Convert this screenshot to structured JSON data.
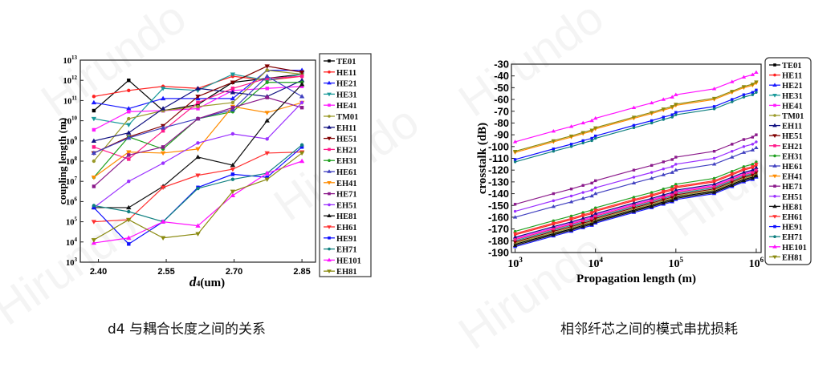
{
  "watermark": "Hirundo",
  "captions": {
    "left": "d4 与耦合长度之间的关系",
    "right": "相邻纤芯之间的模式串扰损耗"
  },
  "chart_data": [
    {
      "type": "line",
      "title": "",
      "xlabel": "d",
      "xlabel_sub": "4",
      "xlabel_unit": "(um)",
      "ylabel": "coupling length (m)",
      "yscale": "log",
      "ylim_log10": [
        3,
        13
      ],
      "xlim": [
        2.36,
        2.88
      ],
      "x_ticks": [
        "2.40",
        "2.55",
        "2.70",
        "2.85"
      ],
      "x_tick_values": [
        2.4,
        2.55,
        2.7,
        2.85
      ],
      "y_tick_base": "10",
      "y_tick_exponents": [
        "3",
        "4",
        "5",
        "6",
        "7",
        "8",
        "9",
        "10",
        "11",
        "12",
        "13"
      ],
      "legend_position": "right-outside",
      "x": [
        2.39,
        2.467,
        2.543,
        2.62,
        2.697,
        2.773,
        2.85
      ],
      "values_are": "log10 of coupling length (m)",
      "series": [
        {
          "name": "TE01",
          "color": "#000000",
          "values": [
            10.5,
            12.0,
            10.5,
            10.8,
            11.9,
            12.1,
            12.3
          ]
        },
        {
          "name": "HE11",
          "color": "#ff2020",
          "values": [
            11.2,
            11.5,
            11.7,
            11.6,
            12.2,
            12.0,
            12.2
          ]
        },
        {
          "name": "HE21",
          "color": "#1a1aff",
          "values": [
            10.9,
            10.6,
            11.1,
            11.1,
            11.1,
            12.5,
            12.5
          ]
        },
        {
          "name": "HE31",
          "color": "#1a9a9a",
          "values": [
            10.1,
            9.8,
            11.6,
            11.5,
            12.3,
            12.0,
            12.3
          ]
        },
        {
          "name": "HE41",
          "color": "#ff1aff",
          "values": [
            9.55,
            10.45,
            10.5,
            10.6,
            11.5,
            11.6,
            11.7
          ]
        },
        {
          "name": "TM01",
          "color": "#9a9a2a",
          "values": [
            8.0,
            10.1,
            10.5,
            10.7,
            10.9,
            12.5,
            12.3
          ]
        },
        {
          "name": "EH11",
          "color": "#101080",
          "values": [
            9.0,
            9.4,
            10.6,
            11.6,
            11.4,
            11.2,
            12.0
          ]
        },
        {
          "name": "HE51",
          "color": "#800000",
          "values": [
            8.4,
            9.2,
            9.75,
            11.2,
            11.9,
            12.7,
            12.4
          ]
        },
        {
          "name": "EH21",
          "color": "#ff1a8a",
          "values": [
            8.7,
            8.1,
            9.5,
            10.9,
            11.6,
            12.1,
            12.2
          ]
        },
        {
          "name": "EH31",
          "color": "#20a020",
          "values": [
            7.2,
            9.2,
            8.6,
            10.1,
            10.45,
            11.9,
            11.9
          ]
        },
        {
          "name": "HE61",
          "color": "#4040c0",
          "values": [
            8.4,
            9.15,
            9.65,
            10.1,
            10.55,
            12.2,
            11.2
          ]
        },
        {
          "name": "EH41",
          "color": "#ff8c00",
          "values": [
            7.2,
            8.45,
            8.4,
            8.6,
            10.7,
            10.4,
            10.9
          ]
        },
        {
          "name": "HE71",
          "color": "#8b1a8b",
          "values": [
            6.75,
            8.3,
            8.7,
            10.1,
            10.65,
            11.15,
            10.65
          ]
        },
        {
          "name": "EH51",
          "color": "#9a30ff",
          "values": [
            5.7,
            7.0,
            7.9,
            8.9,
            9.35,
            9.1,
            10.9
          ]
        },
        {
          "name": "HE81",
          "color": "#111111",
          "values": [
            5.7,
            5.7,
            6.75,
            8.2,
            7.8,
            10.0,
            11.8
          ]
        },
        {
          "name": "EH61",
          "color": "#ff3030",
          "values": [
            5.0,
            5.1,
            6.7,
            7.3,
            7.6,
            8.4,
            8.45
          ]
        },
        {
          "name": "HE91",
          "color": "#1010ff",
          "values": [
            5.7,
            3.9,
            5.0,
            6.7,
            7.35,
            7.2,
            8.7
          ]
        },
        {
          "name": "EH71",
          "color": "#108080",
          "values": [
            5.8,
            5.5,
            5.0,
            6.65,
            7.1,
            7.4,
            8.8
          ]
        },
        {
          "name": "HE101",
          "color": "#ff10ff",
          "values": [
            3.95,
            4.2,
            5.0,
            4.8,
            6.3,
            7.4,
            8.0
          ]
        },
        {
          "name": "EH81",
          "color": "#8a8a10",
          "values": [
            4.1,
            5.1,
            4.2,
            4.4,
            6.5,
            7.1,
            8.4
          ]
        }
      ]
    },
    {
      "type": "line",
      "title": "",
      "xlabel": "Propagation length (m)",
      "ylabel": "crosstalk (dB)",
      "xscale": "log",
      "xlim": [
        900,
        1150000
      ],
      "ylim": [
        -190,
        -30
      ],
      "x_tick_base": "10",
      "x_tick_exponents": [
        "3",
        "4",
        "5",
        "6"
      ],
      "y_ticks": [
        "-30",
        "-40",
        "-50",
        "-60",
        "-70",
        "-80",
        "-90",
        "-100",
        "-110",
        "-120",
        "-130",
        "-140",
        "-150",
        "-160",
        "-170",
        "-180",
        "-190"
      ],
      "legend_position": "right-outside",
      "x": [
        1000,
        3000,
        5000,
        7000,
        9000,
        10000,
        30000,
        50000,
        70000,
        90000,
        100000,
        300000,
        500000,
        700000,
        900000,
        1000000
      ],
      "series": [
        {
          "name": "TE01",
          "color": "#000000",
          "values": [
            -183,
            -174,
            -170,
            -167,
            -165,
            -163,
            -154,
            -150,
            -147,
            -145,
            -143,
            -138,
            -132,
            -128,
            -126,
            -124
          ]
        },
        {
          "name": "HE11",
          "color": "#ff2020",
          "values": [
            -175,
            -166,
            -162,
            -159,
            -157,
            -155,
            -146,
            -142,
            -139,
            -137,
            -135,
            -130,
            -124,
            -120,
            -118,
            -116
          ]
        },
        {
          "name": "HE21",
          "color": "#1a1aff",
          "values": [
            -185,
            -176,
            -172,
            -169,
            -167,
            -165,
            -156,
            -152,
            -149,
            -147,
            -145,
            -140,
            -134,
            -130,
            -128,
            -126
          ]
        },
        {
          "name": "HE31",
          "color": "#1a9a9a",
          "values": [
            -180,
            -171,
            -167,
            -164,
            -162,
            -160,
            -151,
            -147,
            -144,
            -142,
            -140,
            -135,
            -129,
            -125,
            -123,
            -121
          ]
        },
        {
          "name": "HE41",
          "color": "#ff1aff",
          "values": [
            -178,
            -169,
            -165,
            -162,
            -160,
            -158,
            -149,
            -145,
            -142,
            -140,
            -138,
            -133,
            -127,
            -123,
            -121,
            -119
          ]
        },
        {
          "name": "TM01",
          "color": "#9a9a2a",
          "values": [
            -182,
            -173,
            -169,
            -166,
            -164,
            -162,
            -153,
            -149,
            -146,
            -144,
            -142,
            -137,
            -131,
            -127,
            -125,
            -123
          ]
        },
        {
          "name": "EH11",
          "color": "#101080",
          "values": [
            -177,
            -168,
            -164,
            -161,
            -159,
            -157,
            -148,
            -144,
            -141,
            -139,
            -137,
            -132,
            -126,
            -122,
            -120,
            -118
          ]
        },
        {
          "name": "HE51",
          "color": "#800000",
          "values": [
            -181,
            -172,
            -168,
            -165,
            -163,
            -161,
            -152,
            -148,
            -145,
            -143,
            -141,
            -136,
            -130,
            -126,
            -124,
            -122
          ]
        },
        {
          "name": "EH21",
          "color": "#ff1a8a",
          "values": [
            -179,
            -170,
            -166,
            -163,
            -161,
            -159,
            -150,
            -146,
            -143,
            -141,
            -139,
            -134,
            -128,
            -124,
            -122,
            -120
          ]
        },
        {
          "name": "EH31",
          "color": "#20a020",
          "values": [
            -172,
            -163,
            -159,
            -156,
            -154,
            -152,
            -143,
            -139,
            -136,
            -134,
            -132,
            -127,
            -121,
            -117,
            -115,
            -113
          ]
        },
        {
          "name": "HE61",
          "color": "#4040c0",
          "values": [
            -160,
            -151,
            -147,
            -144,
            -142,
            -140,
            -131,
            -127,
            -124,
            -122,
            -120,
            -115,
            -109,
            -105,
            -103,
            -101
          ]
        },
        {
          "name": "EH41",
          "color": "#ff8c00",
          "values": [
            -105,
            -96,
            -92,
            -89,
            -87,
            -85,
            -76,
            -72,
            -69,
            -67,
            -65,
            -60,
            -54,
            -50,
            -48,
            -46
          ]
        },
        {
          "name": "HE71",
          "color": "#8b1a8b",
          "values": [
            -149,
            -140,
            -136,
            -133,
            -131,
            -129,
            -120,
            -116,
            -113,
            -111,
            -109,
            -104,
            -98,
            -94,
            -92,
            -90
          ]
        },
        {
          "name": "EH51",
          "color": "#9a30ff",
          "values": [
            -155,
            -146,
            -142,
            -139,
            -137,
            -135,
            -126,
            -122,
            -119,
            -117,
            -115,
            -110,
            -104,
            -100,
            -98,
            -96
          ]
        },
        {
          "name": "HE81",
          "color": "#111111",
          "values": [
            -184,
            -175,
            -171,
            -168,
            -166,
            -164,
            -155,
            -151,
            -148,
            -146,
            -144,
            -139,
            -133,
            -129,
            -127,
            -125
          ]
        },
        {
          "name": "EH61",
          "color": "#ff3030",
          "values": [
            -174,
            -165,
            -161,
            -158,
            -156,
            -154,
            -145,
            -141,
            -138,
            -136,
            -134,
            -129,
            -123,
            -119,
            -117,
            -115
          ]
        },
        {
          "name": "HE91",
          "color": "#1010ff",
          "values": [
            -111,
            -102,
            -98,
            -95,
            -93,
            -91,
            -82,
            -78,
            -75,
            -73,
            -71,
            -66,
            -60,
            -56,
            -54,
            -52
          ]
        },
        {
          "name": "EH71",
          "color": "#108080",
          "values": [
            -113,
            -104,
            -100,
            -97,
            -95,
            -93,
            -84,
            -80,
            -77,
            -75,
            -73,
            -68,
            -62,
            -58,
            -56,
            -54
          ]
        },
        {
          "name": "HE101",
          "color": "#ff10ff",
          "values": [
            -96,
            -87,
            -83,
            -80,
            -78,
            -76,
            -67,
            -63,
            -60,
            -58,
            -56,
            -51,
            -45,
            -41,
            -39,
            -37
          ]
        },
        {
          "name": "EH81",
          "color": "#8a8a10",
          "values": [
            -104,
            -95,
            -91,
            -88,
            -86,
            -84,
            -75,
            -71,
            -68,
            -66,
            -64,
            -59,
            -53,
            -49,
            -47,
            -45
          ]
        }
      ]
    }
  ]
}
